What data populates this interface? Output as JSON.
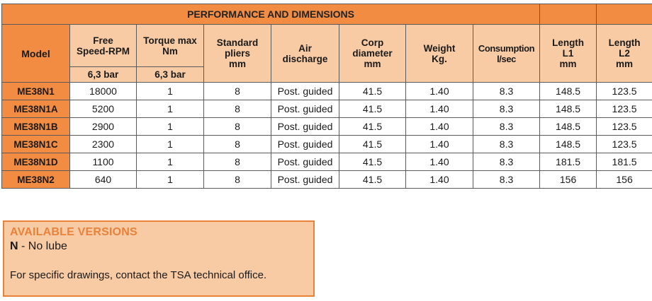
{
  "table": {
    "title": "PERFORMANCE AND DIMENSIONS",
    "headers": {
      "model": "Model",
      "free_speed": [
        "Free",
        "Speed-RPM"
      ],
      "torque": [
        "Torque max",
        "Nm"
      ],
      "pliers": [
        "Standard",
        "pliers",
        "mm"
      ],
      "air": [
        "Air",
        "discharge"
      ],
      "corp": [
        "Corp",
        "diameter",
        "mm"
      ],
      "weight": [
        "Weight",
        "Kg."
      ],
      "consumption": [
        "Consumption",
        "l/sec"
      ],
      "length1": [
        "Length",
        "L1",
        "mm"
      ],
      "length2": [
        "Length",
        "L2",
        "mm"
      ]
    },
    "subheaders": {
      "free_speed": "6,3 bar",
      "torque": "6,3 bar"
    },
    "rows": [
      [
        "ME38N1",
        "18000",
        "1",
        "8",
        "Post. guided",
        "41.5",
        "1.40",
        "8.3",
        "148.5",
        "123.5"
      ],
      [
        "ME38N1A",
        "5200",
        "1",
        "8",
        "Post. guided",
        "41.5",
        "1.40",
        "8.3",
        "148.5",
        "123.5"
      ],
      [
        "ME38N1B",
        "2900",
        "1",
        "8",
        "Post. guided",
        "41.5",
        "1.40",
        "8.3",
        "148.5",
        "123.5"
      ],
      [
        "ME38N1C",
        "2300",
        "1",
        "8",
        "Post. guided",
        "41.5",
        "1.40",
        "8.3",
        "148.5",
        "123.5"
      ],
      [
        "ME38N1D",
        "1100",
        "1",
        "8",
        "Post. guided",
        "41.5",
        "1.40",
        "8.3",
        "181.5",
        "181.5"
      ],
      [
        "ME38N2",
        "640",
        "1",
        "8",
        "Post. guided",
        "41.5",
        "1.40",
        "8.3",
        "156",
        "156"
      ]
    ]
  },
  "versions": {
    "title": "AVAILABLE VERSIONS",
    "code": "N",
    "code_desc": " - No lube",
    "note": "For specific drawings, contact the TSA technical office."
  },
  "colors": {
    "accent": "#f28c43",
    "peach": "#f9cba4",
    "border": "#e8823a"
  }
}
